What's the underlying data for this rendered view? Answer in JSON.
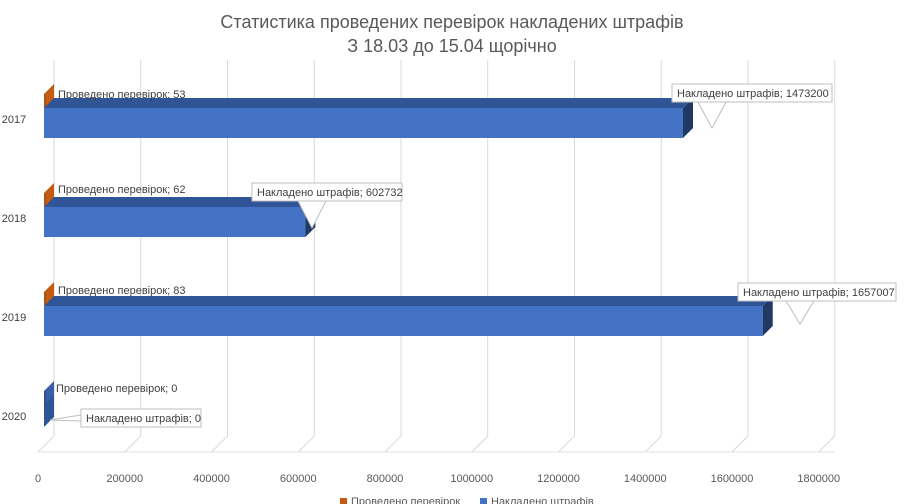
{
  "chart_data": {
    "type": "bar",
    "orientation": "horizontal",
    "title": "Статистика проведених перевірок накладених штрафів",
    "subtitle": "З 18.03 до 15.04 щорічно",
    "categories": [
      "2017",
      "2018",
      "2019",
      "2020"
    ],
    "series": [
      {
        "name": "Проведено перевірок",
        "color": "#c55a11",
        "values": [
          53,
          62,
          83,
          0
        ],
        "data_labels": [
          "Проведено перевірок; 53",
          "Проведено перевірок; 62",
          "Проведено перевірок; 83",
          "Проведено перевірок; 0"
        ]
      },
      {
        "name": "Накладено штрафів",
        "color": "#4472c4",
        "values": [
          1473200,
          602732,
          1657007,
          0
        ],
        "data_labels": [
          "Накладено штрафів; 1473200",
          "Накладено штрафів; 602732",
          "Накладено штрафів; 1657007",
          "Накладено штрафів; 0"
        ]
      }
    ],
    "x_ticks": [
      "0",
      "200000",
      "400000",
      "600000",
      "800000",
      "1000000",
      "1200000",
      "1400000",
      "1600000",
      "1800000"
    ],
    "xlim": [
      0,
      1800000
    ],
    "grid": true,
    "legend_position": "bottom",
    "style": "3d"
  }
}
